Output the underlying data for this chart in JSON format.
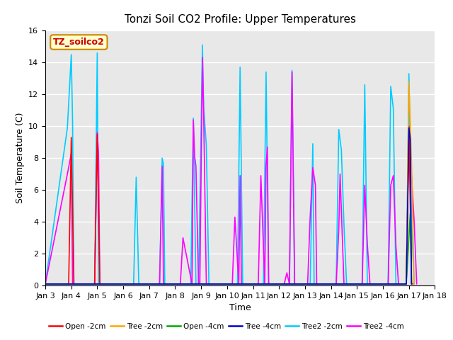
{
  "title": "Tonzi Soil CO2 Profile: Upper Temperatures",
  "xlabel": "Time",
  "ylabel": "Soil Temperature (C)",
  "ylim": [
    0,
    16
  ],
  "annotation_text": "TZ_soilco2",
  "background_color": "#e8e8e8",
  "series": {
    "Open_2cm": {
      "color": "#ff0000",
      "label": "Open -2cm",
      "data": [
        [
          3,
          0.1
        ],
        [
          3.9,
          0.1
        ],
        [
          4.0,
          9.3
        ],
        [
          4.1,
          0.1
        ],
        [
          4.9,
          0.1
        ],
        [
          5.0,
          9.5
        ],
        [
          5.1,
          0.1
        ],
        [
          16.9,
          0.1
        ],
        [
          17.0,
          10.0
        ],
        [
          17.05,
          5.3
        ],
        [
          17.1,
          0.1
        ],
        [
          17.15,
          0.1
        ]
      ]
    },
    "Tree_2cm": {
      "color": "#ffa500",
      "label": "Tree -2cm",
      "data": [
        [
          3,
          0.1
        ],
        [
          16.9,
          0.1
        ],
        [
          17.0,
          12.8
        ],
        [
          17.1,
          7.8
        ],
        [
          17.2,
          0.1
        ]
      ]
    },
    "Open_4cm": {
      "color": "#00aa00",
      "label": "Open -4cm",
      "data": [
        [
          3,
          0.1
        ],
        [
          16.9,
          0.1
        ],
        [
          17.05,
          4.5
        ],
        [
          17.1,
          0.1
        ]
      ]
    },
    "Tree_4cm": {
      "color": "#0000cc",
      "label": "Tree -4cm",
      "data": [
        [
          3,
          0.1
        ],
        [
          16.9,
          0.1
        ],
        [
          17.0,
          9.9
        ],
        [
          17.05,
          9.2
        ],
        [
          17.1,
          0.1
        ]
      ]
    },
    "Tree2_2cm": {
      "color": "#00ccff",
      "label": "Tree2 -2cm",
      "data": [
        [
          3,
          0.1
        ],
        [
          3.85,
          9.9
        ],
        [
          4.0,
          14.5
        ],
        [
          4.05,
          10.3
        ],
        [
          4.1,
          0.1
        ],
        [
          4.9,
          0.1
        ],
        [
          5.0,
          14.6
        ],
        [
          5.05,
          0.1
        ],
        [
          6.4,
          0.1
        ],
        [
          6.5,
          6.8
        ],
        [
          6.6,
          0.1
        ],
        [
          7.4,
          0.1
        ],
        [
          7.5,
          8.0
        ],
        [
          7.55,
          7.6
        ],
        [
          7.6,
          0.1
        ],
        [
          8.6,
          0.1
        ],
        [
          8.7,
          10.5
        ],
        [
          8.8,
          0.1
        ],
        [
          8.9,
          0.1
        ],
        [
          9.05,
          15.1
        ],
        [
          9.1,
          11.1
        ],
        [
          9.2,
          8.8
        ],
        [
          9.3,
          0.1
        ],
        [
          10.4,
          0.1
        ],
        [
          10.5,
          13.7
        ],
        [
          10.6,
          0.1
        ],
        [
          11.4,
          0.1
        ],
        [
          11.5,
          13.4
        ],
        [
          11.6,
          0.1
        ],
        [
          12.4,
          0.1
        ],
        [
          12.5,
          13.5
        ],
        [
          12.6,
          0.1
        ],
        [
          13.2,
          0.1
        ],
        [
          13.3,
          8.9
        ],
        [
          13.35,
          0.1
        ],
        [
          14.2,
          0.1
        ],
        [
          14.3,
          9.8
        ],
        [
          14.4,
          8.5
        ],
        [
          14.5,
          3.8
        ],
        [
          14.6,
          0.1
        ],
        [
          15.2,
          0.1
        ],
        [
          15.3,
          12.6
        ],
        [
          15.4,
          0.1
        ],
        [
          16.2,
          0.1
        ],
        [
          16.3,
          12.5
        ],
        [
          16.4,
          11.1
        ],
        [
          16.5,
          0.1
        ],
        [
          16.9,
          0.1
        ],
        [
          17.0,
          13.3
        ],
        [
          17.1,
          4.0
        ],
        [
          17.2,
          0.1
        ]
      ]
    },
    "Tree2_4cm": {
      "color": "#ff00ff",
      "label": "Tree2 -4cm",
      "data": [
        [
          3,
          0.1
        ],
        [
          3.85,
          7.0
        ],
        [
          4.0,
          8.3
        ],
        [
          4.05,
          0.1
        ],
        [
          4.9,
          0.1
        ],
        [
          5.0,
          9.6
        ],
        [
          5.05,
          8.3
        ],
        [
          5.1,
          0.1
        ],
        [
          7.4,
          0.1
        ],
        [
          7.5,
          7.5
        ],
        [
          7.55,
          0.1
        ],
        [
          8.2,
          0.1
        ],
        [
          8.3,
          3.0
        ],
        [
          8.65,
          0.1
        ],
        [
          8.7,
          10.4
        ],
        [
          8.75,
          8.1
        ],
        [
          8.8,
          7.5
        ],
        [
          8.9,
          0.1
        ],
        [
          8.95,
          0.1
        ],
        [
          9.05,
          14.3
        ],
        [
          9.1,
          10.5
        ],
        [
          9.2,
          0.1
        ],
        [
          10.2,
          0.1
        ],
        [
          10.3,
          4.3
        ],
        [
          10.45,
          0.1
        ],
        [
          10.5,
          6.9
        ],
        [
          10.55,
          0.1
        ],
        [
          11.2,
          0.1
        ],
        [
          11.3,
          6.9
        ],
        [
          11.45,
          0.1
        ],
        [
          11.5,
          7.5
        ],
        [
          11.55,
          8.7
        ],
        [
          11.6,
          0.1
        ],
        [
          12.2,
          0.1
        ],
        [
          12.3,
          0.8
        ],
        [
          12.4,
          0.1
        ],
        [
          12.5,
          13.4
        ],
        [
          12.6,
          0.1
        ],
        [
          13.1,
          0.1
        ],
        [
          13.2,
          4.4
        ],
        [
          13.3,
          7.4
        ],
        [
          13.4,
          6.3
        ],
        [
          13.45,
          0.1
        ],
        [
          14.2,
          0.1
        ],
        [
          14.3,
          3.5
        ],
        [
          14.35,
          7.0
        ],
        [
          14.5,
          0.1
        ],
        [
          15.2,
          0.1
        ],
        [
          15.3,
          6.3
        ],
        [
          15.4,
          2.6
        ],
        [
          15.5,
          0.1
        ],
        [
          16.2,
          0.1
        ],
        [
          16.3,
          6.3
        ],
        [
          16.4,
          6.9
        ],
        [
          16.5,
          2.5
        ],
        [
          16.6,
          0.1
        ],
        [
          16.9,
          0.1
        ],
        [
          17.0,
          9.3
        ],
        [
          17.1,
          6.9
        ],
        [
          17.2,
          4.1
        ],
        [
          17.3,
          0.1
        ]
      ]
    }
  },
  "xtick_labels": [
    "Jan 3",
    "Jan 4",
    "Jan 5",
    "Jan 6",
    "Jan 7",
    "Jan 8",
    "Jan 9",
    "Jan 10",
    "Jan 11",
    "Jan 12",
    "Jan 13",
    "Jan 14",
    "Jan 15",
    "Jan 16",
    "Jan 17",
    "Jan 18"
  ],
  "xtick_positions": [
    3,
    4,
    5,
    6,
    7,
    8,
    9,
    10,
    11,
    12,
    13,
    14,
    15,
    16,
    17,
    18
  ],
  "ytick_positions": [
    0,
    2,
    4,
    6,
    8,
    10,
    12,
    14,
    16
  ]
}
